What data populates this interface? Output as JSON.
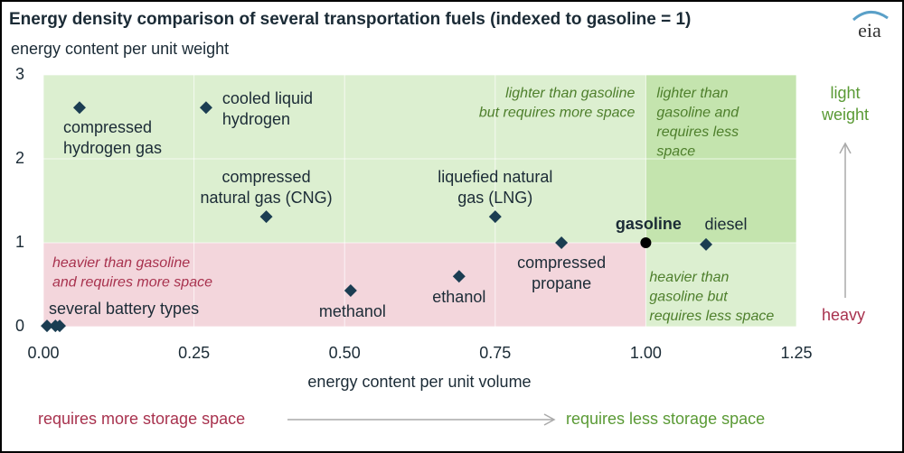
{
  "chart_data": {
    "type": "scatter",
    "title": "Energy density comparison of several transportation fuels (indexed to gasoline = 1)",
    "logo": "eia",
    "y_label": "energy content per unit weight",
    "x_label": "energy content per unit volume",
    "xlim": [
      0,
      1.25
    ],
    "ylim": [
      0,
      3
    ],
    "xticks": [
      {
        "value": 0,
        "label": "0.00"
      },
      0.25,
      {
        "value": 0.5,
        "label": "0.50"
      },
      0.75,
      {
        "value": 1,
        "label": "1.00"
      },
      1.25
    ],
    "yticks": [
      0,
      1,
      2,
      3
    ],
    "grid": true,
    "marker_color": "#1b3d52",
    "points": [
      {
        "label_lines": [
          "compressed",
          "hydrogen gas"
        ],
        "x": 0.06,
        "y": 2.61
      },
      {
        "label_lines": [
          "cooled liquid",
          "hydrogen"
        ],
        "x": 0.27,
        "y": 2.61
      },
      {
        "label_lines": [
          "compressed",
          "natural gas (CNG)"
        ],
        "x": 0.37,
        "y": 1.31
      },
      {
        "label_lines": [
          "liquefied natural",
          "gas (LNG)"
        ],
        "x": 0.75,
        "y": 1.31
      },
      {
        "label_lines": [
          "compressed",
          "propane"
        ],
        "x": 0.86,
        "y": 1.0
      },
      {
        "label_lines": [
          "ethanol"
        ],
        "x": 0.69,
        "y": 0.6
      },
      {
        "label_lines": [
          "methanol"
        ],
        "x": 0.51,
        "y": 0.43
      },
      {
        "label_lines": [
          "diesel"
        ],
        "x": 1.1,
        "y": 0.98
      },
      {
        "label_lines": [
          "gasoline"
        ],
        "x": 1.0,
        "y": 1.0,
        "color": "#000000"
      }
    ],
    "battery": {
      "label": "several battery types",
      "x": [
        0.006,
        0.02,
        0.027
      ],
      "y": [
        0.01,
        0.01,
        0.01
      ]
    },
    "regions": [
      {
        "lines": [
          "lighter than gasoline",
          "but requires more space"
        ],
        "color": "#4e7f2c",
        "fill": "#dcefd0"
      },
      {
        "lines": [
          "lighter than",
          "gasoline and",
          "requires less",
          "space"
        ],
        "color": "#4e7f2c",
        "fill": "#c4e4ae"
      },
      {
        "lines": [
          "heavier than gasoline",
          "and requires more space"
        ],
        "color": "#a8324e",
        "fill": "#f3d6dc"
      },
      {
        "lines": [
          "heavier than",
          "gasoline but",
          "requires less space"
        ],
        "color": "#4e7f2c",
        "fill": "#dcefd0"
      }
    ],
    "right_top": [
      "light",
      "weight"
    ],
    "right_bottom": "heavy",
    "bottom_left": "requires more storage space",
    "bottom_right": "requires less storage space"
  }
}
